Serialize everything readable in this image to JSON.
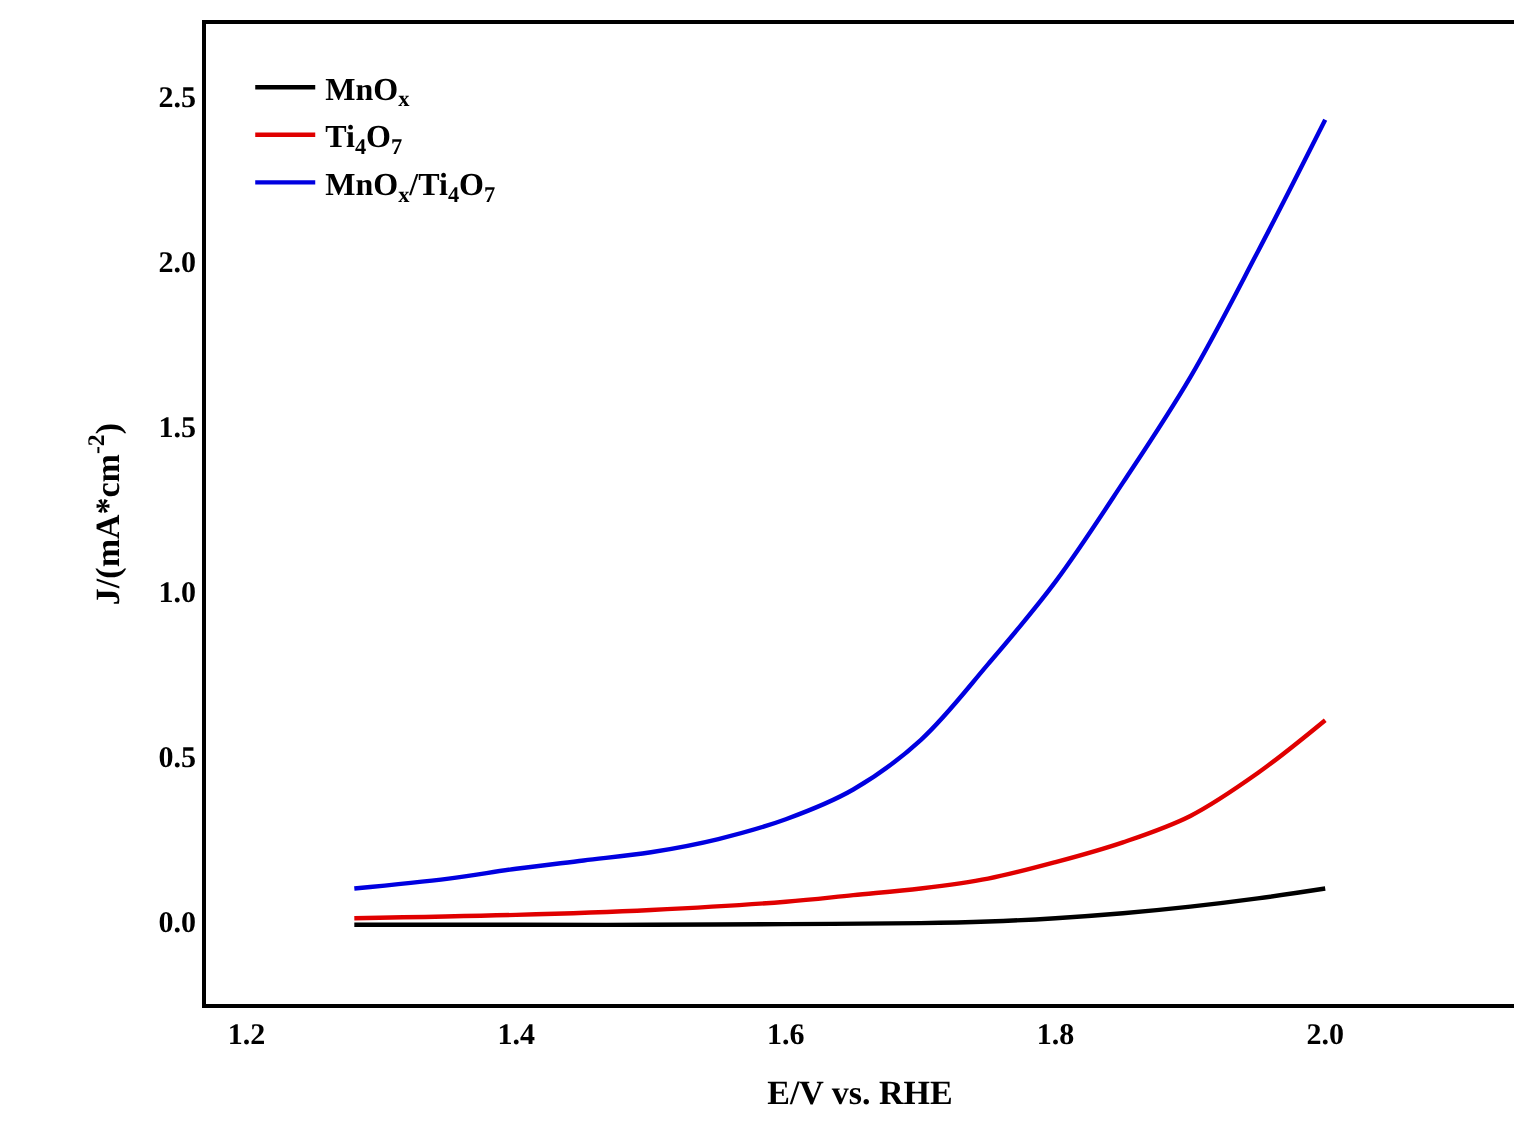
{
  "chart_data": {
    "type": "line",
    "xlabel": "E/V vs. RHE",
    "ylabel": "J/(mA*cm$^{-2}$)",
    "xlim": [
      1.17,
      2.14
    ],
    "xticks": [
      1.2,
      1.4,
      1.6,
      1.8,
      {
        "value": 2,
        "label": "2.0"
      }
    ],
    "ylim": [
      -0.25,
      2.72
    ],
    "yticks": [
      {
        "value": 0,
        "label": "0.0"
      },
      0.5,
      {
        "value": 1,
        "label": "1.0"
      },
      1.5,
      {
        "value": 2,
        "label": "2.0"
      },
      2.5
    ],
    "legend": "top left",
    "line_style": "solid",
    "marker": "none",
    "series": [
      {
        "name": "MnO$_{x}$",
        "color": "#000000",
        "x": [
          1.28,
          1.4,
          1.5,
          1.6,
          1.7,
          1.75,
          1.8,
          1.85,
          1.9,
          1.95,
          2.0
        ],
        "values": [
          -0.01,
          -0.01,
          -0.01,
          -0.008,
          -0.005,
          0.0,
          0.01,
          0.025,
          0.045,
          0.07,
          0.1
        ]
      },
      {
        "name": "Ti$_{4}$O$_{7}$",
        "color": "#e00000",
        "x": [
          1.28,
          1.4,
          1.5,
          1.6,
          1.65,
          1.7,
          1.75,
          1.8,
          1.85,
          1.9,
          1.95,
          2.0
        ],
        "values": [
          0.01,
          0.02,
          0.035,
          0.06,
          0.08,
          0.1,
          0.13,
          0.18,
          0.24,
          0.32,
          0.45,
          0.61
        ]
      },
      {
        "name": "MnO$_{x}$/Ti$_{4}$O$_{7}$",
        "color": "#0000e0",
        "x": [
          1.28,
          1.35,
          1.4,
          1.45,
          1.5,
          1.55,
          1.6,
          1.65,
          1.7,
          1.75,
          1.8,
          1.85,
          1.9,
          1.95,
          2.0
        ],
        "values": [
          0.1,
          0.13,
          0.16,
          0.185,
          0.21,
          0.25,
          0.31,
          0.4,
          0.55,
          0.78,
          1.03,
          1.33,
          1.65,
          2.03,
          2.43
        ]
      }
    ]
  }
}
